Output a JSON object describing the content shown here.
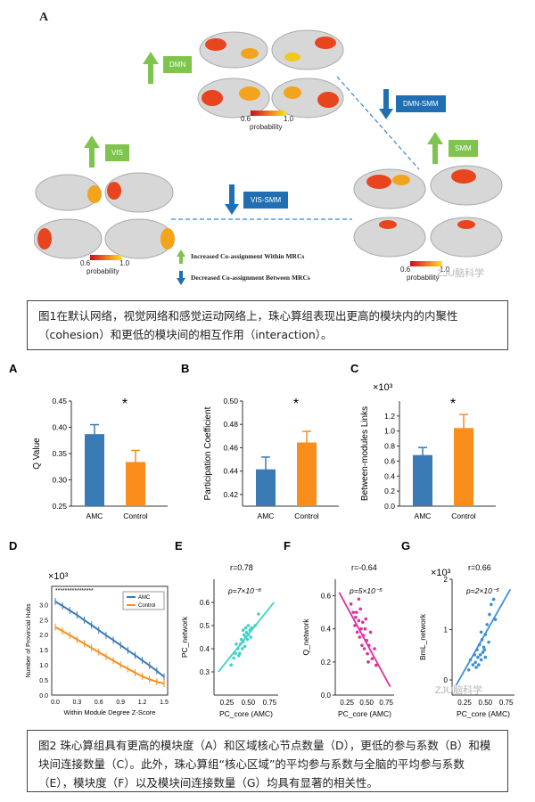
{
  "fig1": {
    "letter": "A",
    "dmn": "DMN",
    "vis": "VIS",
    "smm": "SMM",
    "dmn_smm": "DMN-SMM",
    "vis_smm": "VIS-SMM",
    "colorbar_min": "0.6",
    "colorbar_max": "1.0",
    "colorbar_label": "probability",
    "legend_inc": "Increased Co-assignment Within MRCs",
    "legend_dec": "Decreased Co-assignment Between MRCs",
    "watermark": "ZJU脑科学"
  },
  "caption1": "图1在默认网络，视觉网络和感觉运动网络上，珠心算组表现出更高的模块内的内聚性（cohesion）和更低的模块间的相互作用（interaction）。",
  "caption2": "图2 珠心算组具有更高的模块度（A）和区域核心节点数量（D），更低的参与系数（B）和模块间连接数量（C）。此外，珠心算组“核心区域”的平均参与系数与全脑的平均参与系数（E），模块度（F）以及模块间连接数量（G）均具有显著的相关性。",
  "colors": {
    "amc": "#3a7ab5",
    "control": "#f98e1d",
    "green": "#7ec44f",
    "blue": "#1f6fb2",
    "cyan": "#3fd3c4",
    "magenta": "#e0309a",
    "scatterBlue": "#3b8fdc"
  },
  "chart_data": [
    {
      "type": "bar",
      "letter": "A",
      "categories": [
        "AMC",
        "Control"
      ],
      "values": [
        0.387,
        0.334
      ],
      "errors": [
        0.018,
        0.022
      ],
      "ylabel": "Q Value",
      "ylim": [
        0.25,
        0.45
      ],
      "yticks": [
        "0.25",
        "0.30",
        "0.35",
        "0.40",
        "0.45"
      ],
      "sig": "*"
    },
    {
      "type": "bar",
      "letter": "B",
      "categories": [
        "AMC",
        "Control"
      ],
      "values": [
        0.4415,
        0.4645
      ],
      "errors": [
        0.0105,
        0.0095
      ],
      "ylabel": "Participation Coefficient",
      "ylim": [
        0.41,
        0.5
      ],
      "yticks": [
        "0.42",
        "0.44",
        "0.46",
        "0.48",
        "0.50"
      ],
      "sig": "*"
    },
    {
      "type": "bar",
      "letter": "C",
      "categories": [
        "AMC",
        "Control"
      ],
      "values": [
        0.68,
        1.04
      ],
      "errors": [
        0.1,
        0.18
      ],
      "ylabel": "Between-modules Links",
      "ylim": [
        0,
        1.4
      ],
      "yticks": [
        "0.0",
        "0.2",
        "0.4",
        "0.6",
        "0.8",
        "1.0",
        "1.2"
      ],
      "multiplier": "×10³",
      "sig": "*"
    },
    {
      "type": "line",
      "letter": "D",
      "title": "",
      "xlabel": "Within Module Degree Z-Score",
      "ylabel": "Number of Provincial Hubs",
      "multiplier": "×10³",
      "x": [
        0.0,
        0.1,
        0.2,
        0.3,
        0.4,
        0.5,
        0.6,
        0.7,
        0.8,
        0.9,
        1.0,
        1.1,
        1.2,
        1.3,
        1.4,
        1.5
      ],
      "xticks": [
        "0.0",
        "0.3",
        "0.6",
        "0.9",
        "1.2",
        "1.5"
      ],
      "yticks": [
        "0.0",
        "0.5",
        "1.0",
        "1.5",
        "2.0",
        "2.5",
        "3.0"
      ],
      "ylim": [
        0,
        3.6
      ],
      "series": [
        {
          "name": "AMC",
          "values": [
            3.1,
            2.95,
            2.8,
            2.65,
            2.48,
            2.32,
            2.15,
            1.98,
            1.82,
            1.65,
            1.48,
            1.32,
            1.15,
            0.98,
            0.8,
            0.6
          ]
        },
        {
          "name": "Control",
          "values": [
            2.25,
            2.12,
            1.98,
            1.84,
            1.7,
            1.56,
            1.42,
            1.28,
            1.14,
            1.0,
            0.87,
            0.74,
            0.62,
            0.52,
            0.44,
            0.38
          ]
        }
      ],
      "sig_marks": "* * * * * * * * * * * * * * * *"
    },
    {
      "type": "scatter",
      "letter": "E",
      "r": "r=0.78",
      "p": "p=7×10⁻⁸",
      "xlabel": "PC_core (AMC)",
      "ylabel": "PC_network",
      "xlim": [
        0.1,
        0.85
      ],
      "ylim": [
        0.2,
        0.7
      ],
      "xticks": [
        "0.25",
        "0.50",
        "0.75"
      ],
      "yticks": [
        "0.3",
        "0.4",
        "0.5",
        "0.6"
      ],
      "points": [
        [
          0.3,
          0.33
        ],
        [
          0.33,
          0.36
        ],
        [
          0.35,
          0.38
        ],
        [
          0.38,
          0.4
        ],
        [
          0.4,
          0.38
        ],
        [
          0.41,
          0.42
        ],
        [
          0.42,
          0.44
        ],
        [
          0.43,
          0.4
        ],
        [
          0.44,
          0.43
        ],
        [
          0.45,
          0.46
        ],
        [
          0.46,
          0.41
        ],
        [
          0.47,
          0.45
        ],
        [
          0.48,
          0.47
        ],
        [
          0.5,
          0.46
        ],
        [
          0.5,
          0.5
        ],
        [
          0.52,
          0.48
        ],
        [
          0.54,
          0.49
        ],
        [
          0.36,
          0.42
        ],
        [
          0.39,
          0.37
        ],
        [
          0.44,
          0.48
        ],
        [
          0.49,
          0.44
        ],
        [
          0.58,
          0.5
        ],
        [
          0.62,
          0.55
        ],
        [
          0.47,
          0.49
        ],
        [
          0.53,
          0.45
        ]
      ],
      "line": [
        [
          0.15,
          0.3
        ],
        [
          0.8,
          0.6
        ]
      ]
    },
    {
      "type": "scatter",
      "letter": "F",
      "r": "r=-0.64",
      "p": "p=5×10⁻⁵",
      "xlabel": "PC_core (AMC)",
      "ylabel": "Q_network",
      "xlim": [
        0.1,
        0.85
      ],
      "ylim": [
        0.0,
        0.7
      ],
      "xticks": [
        "0.25",
        "0.50",
        "0.75"
      ],
      "yticks": [
        "0.0",
        "0.2",
        "0.4",
        "0.6"
      ],
      "points": [
        [
          0.3,
          0.55
        ],
        [
          0.33,
          0.5
        ],
        [
          0.35,
          0.42
        ],
        [
          0.37,
          0.5
        ],
        [
          0.38,
          0.38
        ],
        [
          0.4,
          0.45
        ],
        [
          0.41,
          0.35
        ],
        [
          0.42,
          0.52
        ],
        [
          0.43,
          0.4
        ],
        [
          0.44,
          0.3
        ],
        [
          0.45,
          0.44
        ],
        [
          0.46,
          0.36
        ],
        [
          0.47,
          0.28
        ],
        [
          0.48,
          0.4
        ],
        [
          0.5,
          0.33
        ],
        [
          0.51,
          0.25
        ],
        [
          0.53,
          0.3
        ],
        [
          0.55,
          0.38
        ],
        [
          0.57,
          0.22
        ],
        [
          0.6,
          0.28
        ],
        [
          0.62,
          0.18
        ],
        [
          0.4,
          0.58
        ],
        [
          0.36,
          0.47
        ],
        [
          0.49,
          0.46
        ],
        [
          0.52,
          0.2
        ]
      ],
      "line": [
        [
          0.15,
          0.62
        ],
        [
          0.8,
          0.05
        ]
      ]
    },
    {
      "type": "scatter",
      "letter": "G",
      "r": "r=0.66",
      "p": "p=2×10⁻⁵",
      "multiplier": "×10³",
      "xlabel": "PC_core (AMC)",
      "ylabel": "BmL_network",
      "xlim": [
        0.1,
        0.85
      ],
      "ylim": [
        -0.3,
        2.0
      ],
      "xticks": [
        "0.25",
        "0.50",
        "0.75"
      ],
      "yticks": [
        "0",
        "1",
        "2"
      ],
      "points": [
        [
          0.3,
          0.2
        ],
        [
          0.32,
          0.4
        ],
        [
          0.35,
          0.3
        ],
        [
          0.37,
          0.5
        ],
        [
          0.38,
          0.35
        ],
        [
          0.4,
          0.6
        ],
        [
          0.41,
          0.45
        ],
        [
          0.42,
          0.3
        ],
        [
          0.43,
          0.7
        ],
        [
          0.44,
          0.5
        ],
        [
          0.45,
          0.4
        ],
        [
          0.46,
          0.8
        ],
        [
          0.47,
          0.55
        ],
        [
          0.48,
          0.65
        ],
        [
          0.5,
          0.9
        ],
        [
          0.5,
          0.45
        ],
        [
          0.52,
          1.1
        ],
        [
          0.54,
          0.75
        ],
        [
          0.55,
          1.3
        ],
        [
          0.57,
          1.5
        ],
        [
          0.6,
          1.6
        ],
        [
          0.62,
          1.2
        ],
        [
          0.39,
          0.25
        ],
        [
          0.45,
          0.95
        ],
        [
          0.49,
          0.6
        ]
      ],
      "line": [
        [
          0.15,
          -0.1
        ],
        [
          0.8,
          1.8
        ]
      ]
    }
  ]
}
